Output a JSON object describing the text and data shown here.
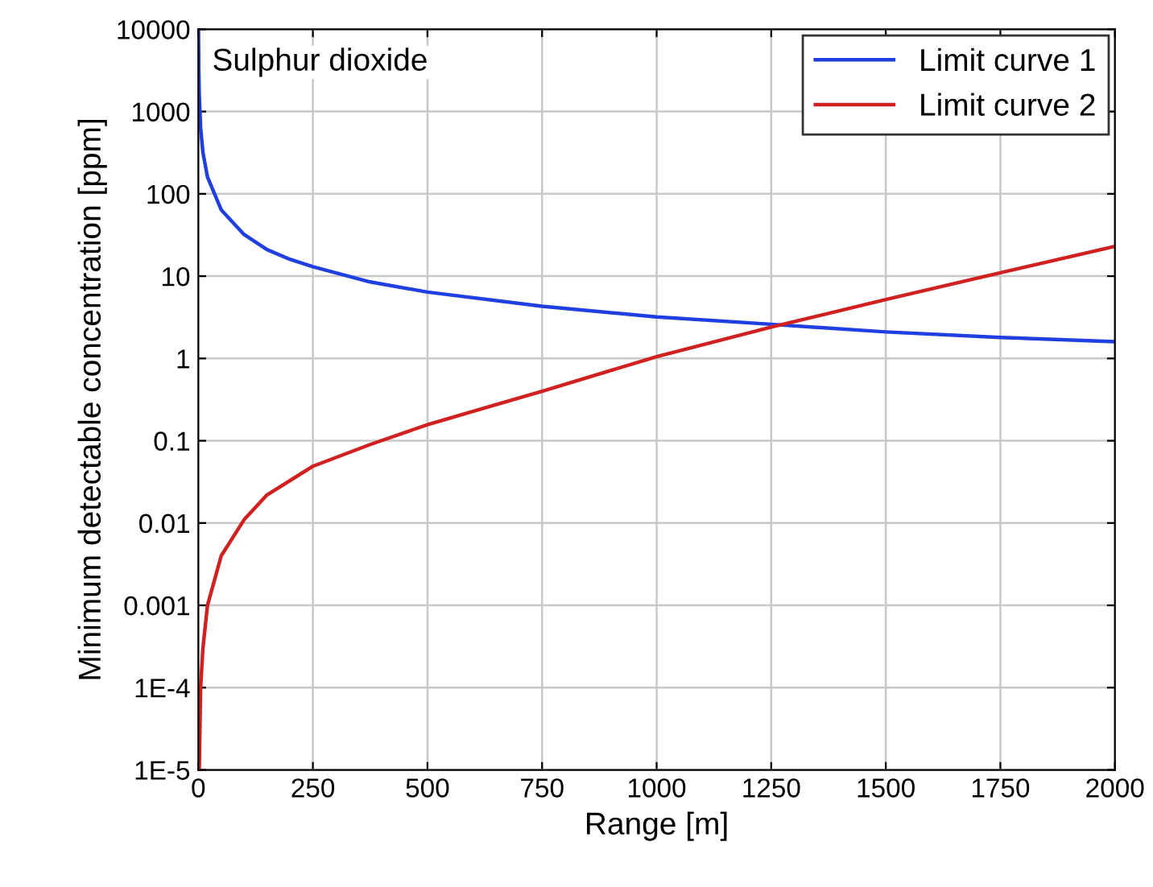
{
  "chart_data": {
    "type": "line",
    "xlabel": "Range [m]",
    "ylabel": "Minimum detectable concentration [ppm]",
    "annotations": [
      "Sulphur dioxide"
    ],
    "log": "y",
    "grid": true,
    "legend": "top right",
    "xlim": [
      0,
      2000
    ],
    "ylim": [
      1e-05,
      10000
    ],
    "xticks": [
      0,
      250,
      500,
      750,
      1000,
      1250,
      1500,
      1750,
      2000
    ],
    "yticks": [
      {
        "value": 1e-05,
        "label": "1E-5"
      },
      {
        "value": 0.0001,
        "label": "1E-4"
      },
      {
        "value": 0.001,
        "label": "0.001"
      },
      {
        "value": 0.01,
        "label": "0.01"
      },
      {
        "value": 0.1,
        "label": "0.1"
      },
      {
        "value": 1,
        "label": "1"
      },
      {
        "value": 10,
        "label": "10"
      },
      {
        "value": 100,
        "label": "100"
      },
      {
        "value": 1000,
        "label": "1000"
      },
      {
        "value": 10000,
        "label": "10000"
      }
    ],
    "series": [
      {
        "name": "Limit curve 1",
        "color": "#1f3fe0",
        "x": [
          0.32,
          1,
          2,
          5,
          10,
          20,
          50,
          100,
          150,
          200,
          250,
          375,
          500,
          750,
          1000,
          1250,
          1500,
          1750,
          2000
        ],
        "values": [
          10000,
          3200,
          1600,
          640,
          320,
          160,
          64,
          32,
          21,
          16,
          13,
          8.5,
          6.4,
          4.3,
          3.2,
          2.6,
          2.1,
          1.8,
          1.6
        ]
      },
      {
        "name": "Limit curve 2",
        "color": "#d02020",
        "x": [
          2,
          5,
          10,
          20,
          50,
          100,
          150,
          250,
          375,
          500,
          750,
          1000,
          1250,
          1500,
          1750,
          2000
        ],
        "values": [
          1e-05,
          0.0001,
          0.0003,
          0.001,
          0.004,
          0.011,
          0.022,
          0.049,
          0.09,
          0.157,
          0.4,
          1.05,
          2.4,
          5.2,
          11,
          23
        ]
      }
    ]
  }
}
